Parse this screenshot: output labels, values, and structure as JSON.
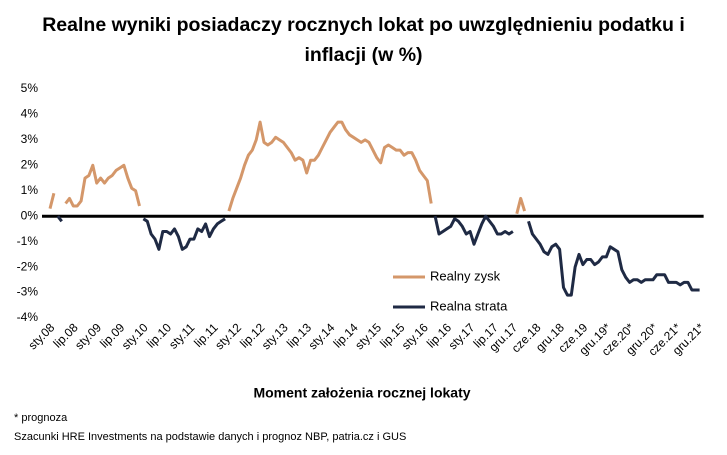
{
  "chart_data": {
    "type": "line",
    "title": "Realne wyniki posiadaczy rocznych lokat po uwzględnieniu podatku i inflacji (w %)",
    "x_label": "Moment założenia rocznej lokaty",
    "notes": [
      "* prognoza",
      "Szacunki HRE Investments na podstawie danych i prognoz NBP,  patria.cz  i GUS"
    ],
    "categories": [
      "sty.08",
      null,
      null,
      null,
      null,
      null,
      "lip.08",
      null,
      null,
      null,
      null,
      null,
      "sty.09",
      null,
      null,
      null,
      null,
      null,
      "lip.09",
      null,
      null,
      null,
      null,
      null,
      "sty.10",
      null,
      null,
      null,
      null,
      null,
      "lip.10",
      null,
      null,
      null,
      null,
      null,
      "sty.11",
      null,
      null,
      null,
      null,
      null,
      "lip.11",
      null,
      null,
      null,
      null,
      null,
      "sty.12",
      null,
      null,
      null,
      null,
      null,
      "lip.12",
      null,
      null,
      null,
      null,
      null,
      "sty.13",
      null,
      null,
      null,
      null,
      null,
      "lip.13",
      null,
      null,
      null,
      null,
      null,
      "sty.14",
      null,
      null,
      null,
      null,
      null,
      "lip.14",
      null,
      null,
      null,
      null,
      null,
      "sty.15",
      null,
      null,
      null,
      null,
      null,
      "lip.15",
      null,
      null,
      null,
      null,
      null,
      "sty.16",
      null,
      null,
      null,
      null,
      null,
      "lip.16",
      null,
      null,
      null,
      null,
      null,
      "sty.17",
      null,
      null,
      null,
      null,
      null,
      "lip.17",
      null,
      null,
      null,
      null,
      "gru.17",
      null,
      null,
      null,
      null,
      null,
      "cze.18",
      null,
      null,
      null,
      null,
      null,
      "gru.18",
      null,
      null,
      null,
      null,
      null,
      "cze.19",
      null,
      null,
      null,
      null,
      null,
      "gru.19*",
      null,
      null,
      null,
      null,
      null,
      "cze.20*",
      null,
      null,
      null,
      null,
      null,
      "gru.20*",
      null,
      null,
      null,
      null,
      null,
      "cze.21*",
      null,
      null,
      null,
      null,
      null,
      "gru.21*"
    ],
    "series": [
      {
        "name": "Realny zysk",
        "color": "#d4976a",
        "values": [
          0.3,
          0.9,
          null,
          null,
          0.5,
          0.7,
          0.4,
          0.4,
          0.6,
          1.5,
          1.6,
          2.0,
          1.3,
          1.5,
          1.3,
          1.5,
          1.6,
          1.8,
          1.9,
          2.0,
          1.5,
          1.1,
          1.0,
          0.4,
          null,
          null,
          null,
          null,
          null,
          null,
          null,
          null,
          null,
          null,
          null,
          null,
          null,
          null,
          null,
          null,
          null,
          null,
          null,
          null,
          null,
          null,
          0.2,
          0.7,
          1.1,
          1.5,
          2.0,
          2.4,
          2.6,
          3.0,
          3.7,
          2.9,
          2.8,
          2.9,
          3.1,
          3.0,
          2.9,
          2.7,
          2.5,
          2.2,
          2.3,
          2.2,
          1.7,
          2.2,
          2.2,
          2.4,
          2.7,
          3.0,
          3.3,
          3.5,
          3.7,
          3.7,
          3.4,
          3.2,
          3.1,
          3.0,
          2.9,
          3.0,
          2.9,
          2.6,
          2.3,
          2.1,
          2.7,
          2.8,
          2.7,
          2.6,
          2.6,
          2.4,
          2.5,
          2.5,
          2.2,
          1.8,
          1.6,
          1.4,
          0.5,
          null,
          null,
          null,
          null,
          null,
          null,
          null,
          null,
          null,
          null,
          null,
          null,
          null,
          null,
          null,
          null,
          null,
          null,
          null,
          null,
          null,
          0.1,
          0.7,
          0.2,
          null,
          null,
          null,
          null,
          null,
          null,
          null,
          null,
          null,
          null,
          null,
          null,
          null,
          null,
          null,
          null,
          null,
          null,
          null,
          null,
          null,
          null,
          null,
          null,
          null,
          null,
          null,
          null,
          null,
          null,
          null,
          null,
          null,
          null,
          null,
          null,
          null,
          null,
          null,
          null,
          null,
          null,
          null,
          null,
          null
        ]
      },
      {
        "name": "Realna strata",
        "color": "#1f2a44",
        "values": [
          null,
          null,
          0.0,
          -0.2,
          null,
          null,
          null,
          null,
          null,
          null,
          null,
          null,
          null,
          null,
          null,
          null,
          null,
          null,
          null,
          null,
          null,
          null,
          null,
          null,
          -0.1,
          -0.2,
          -0.7,
          -0.9,
          -1.3,
          -0.6,
          -0.6,
          -0.7,
          -0.5,
          -0.8,
          -1.3,
          -1.2,
          -0.9,
          -0.9,
          -0.5,
          -0.6,
          -0.3,
          -0.8,
          -0.5,
          -0.3,
          -0.2,
          -0.1,
          null,
          null,
          null,
          null,
          null,
          null,
          null,
          null,
          null,
          null,
          null,
          null,
          null,
          null,
          null,
          null,
          null,
          null,
          null,
          null,
          null,
          null,
          null,
          null,
          null,
          null,
          null,
          null,
          null,
          null,
          null,
          null,
          null,
          null,
          null,
          null,
          null,
          null,
          null,
          null,
          null,
          null,
          null,
          null,
          null,
          null,
          null,
          null,
          null,
          null,
          null,
          null,
          null,
          0.0,
          -0.7,
          -0.6,
          -0.5,
          -0.4,
          -0.1,
          -0.2,
          -0.4,
          -0.7,
          -0.6,
          -1.1,
          -0.7,
          -0.3,
          0.0,
          -0.2,
          -0.4,
          -0.7,
          -0.7,
          -0.6,
          -0.7,
          -0.6,
          null,
          null,
          null,
          -0.2,
          -0.7,
          -0.9,
          -1.1,
          -1.4,
          -1.5,
          -1.2,
          -1.1,
          -1.3,
          -2.8,
          -3.1,
          -3.1,
          -2.0,
          -1.5,
          -1.9,
          -1.7,
          -1.7,
          -1.9,
          -1.8,
          -1.6,
          -1.6,
          -1.2,
          -1.3,
          -1.4,
          -2.1,
          -2.4,
          -2.6,
          -2.5,
          -2.5,
          -2.6,
          -2.5,
          -2.5,
          -2.5,
          -2.3,
          -2.3,
          -2.3,
          -2.6,
          -2.6,
          -2.6,
          -2.7,
          -2.6,
          -2.6,
          -2.9,
          -2.9,
          -2.9
        ]
      }
    ],
    "ylim": [
      -4,
      5
    ],
    "yticks": [
      {
        "value": -4,
        "label": "-4%"
      },
      {
        "value": -3,
        "label": "-3%"
      },
      {
        "value": -2,
        "label": "-2%"
      },
      {
        "value": -1,
        "label": "-1%"
      },
      {
        "value": 0,
        "label": "0%"
      },
      {
        "value": 1,
        "label": "1%"
      },
      {
        "value": 2,
        "label": "2%"
      },
      {
        "value": 3,
        "label": "3%"
      },
      {
        "value": 4,
        "label": "4%"
      },
      {
        "value": 5,
        "label": "5%"
      }
    ],
    "grid": false
  }
}
